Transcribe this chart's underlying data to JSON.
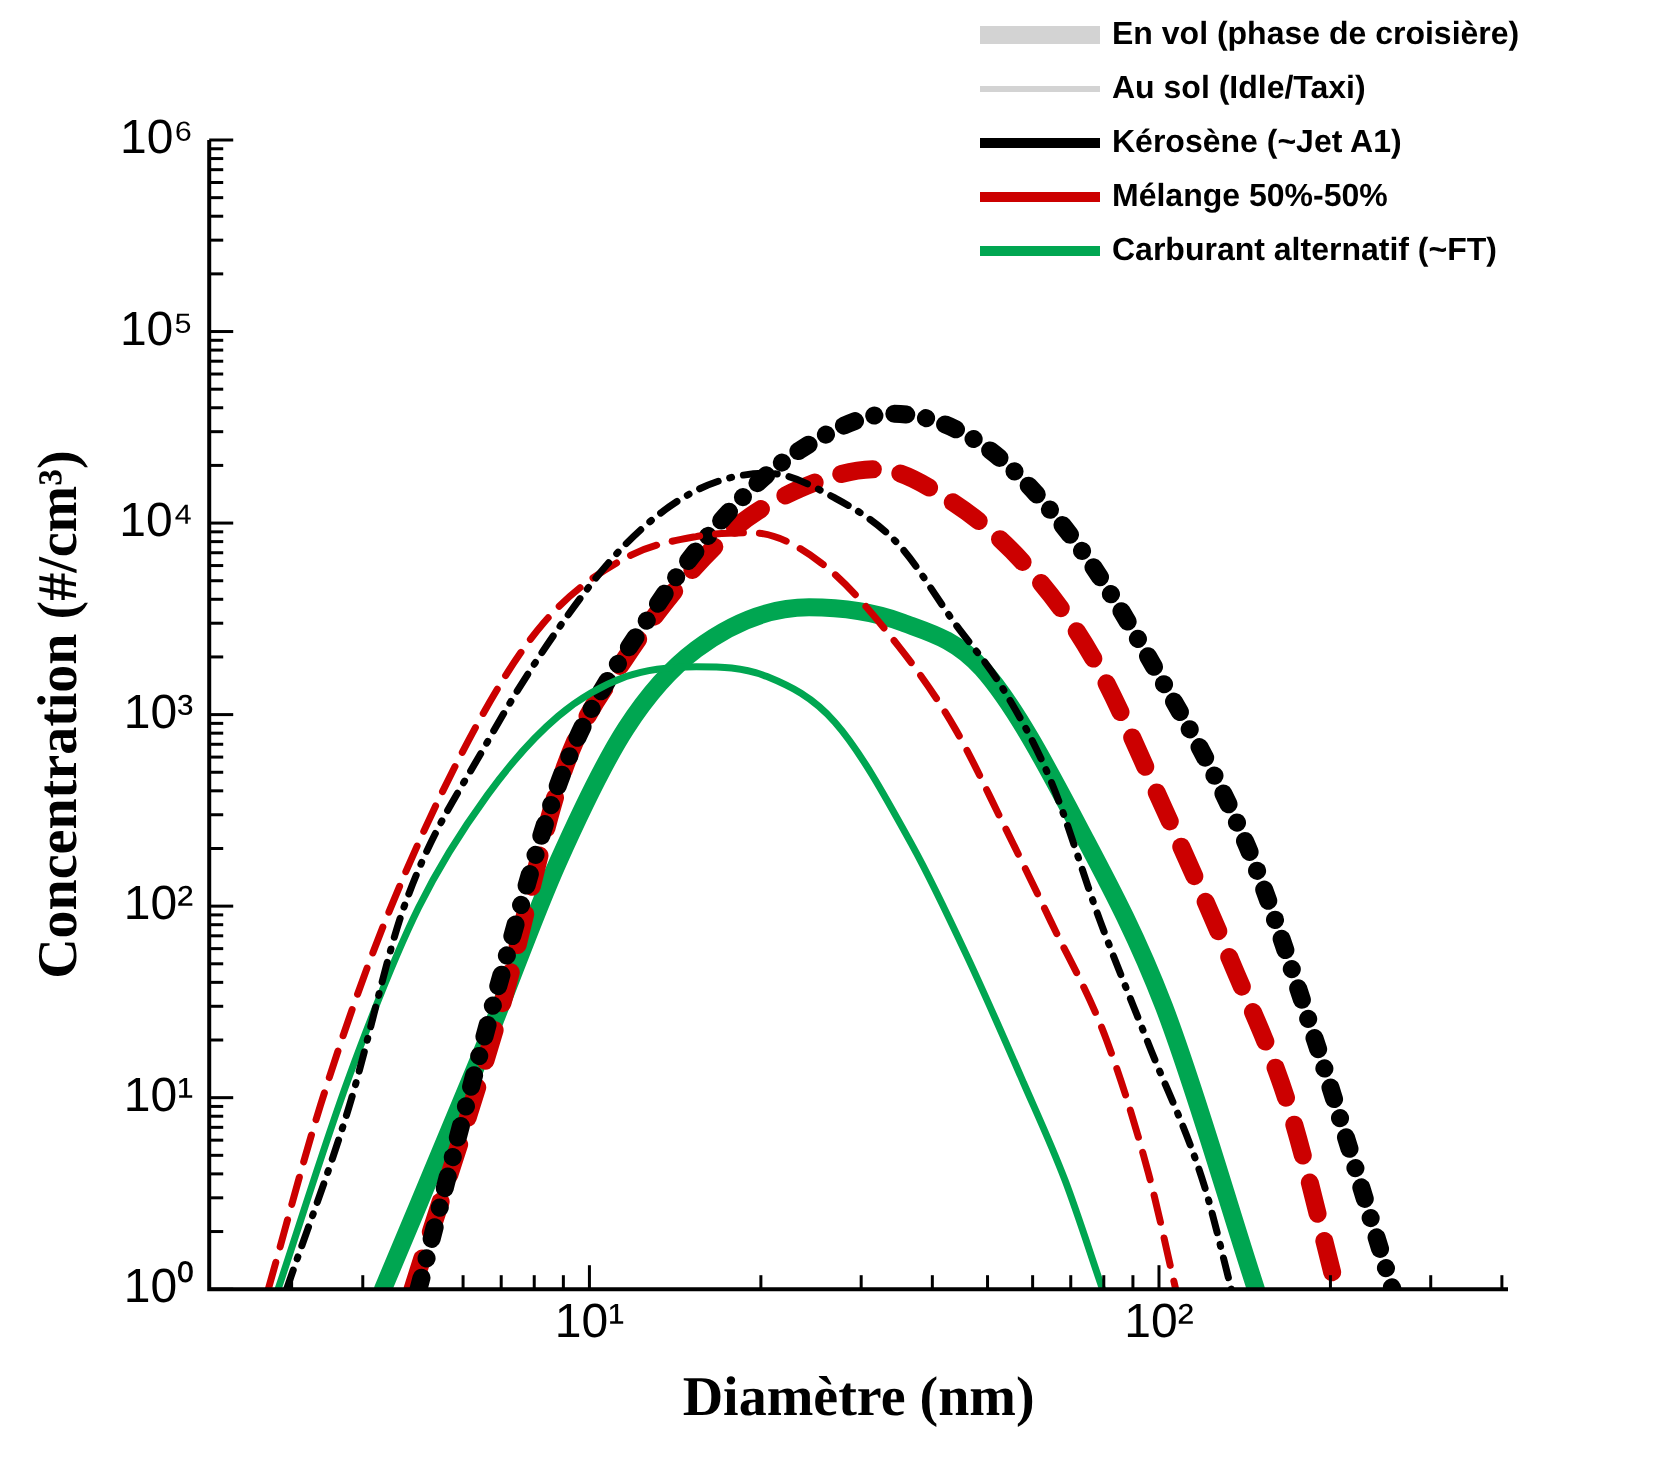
{
  "chart_data": {
    "type": "line",
    "xlabel": "Diamètre (nm)",
    "ylabel": "Concentration (#/cm³)",
    "log": "xy",
    "legend": "top right",
    "xlim": [
      2.15,
      410
    ],
    "ylim": [
      1,
      1000000
    ],
    "xticks": [
      {
        "value": 3,
        "label": null
      },
      {
        "value": 4,
        "label": null
      },
      {
        "value": 5,
        "label": null
      },
      {
        "value": 6,
        "label": null
      },
      {
        "value": 7,
        "label": null
      },
      {
        "value": 8,
        "label": null
      },
      {
        "value": 9,
        "label": null
      },
      {
        "value": 10,
        "label": "10¹"
      },
      {
        "value": 20,
        "label": null
      },
      {
        "value": 30,
        "label": null
      },
      {
        "value": 40,
        "label": null
      },
      {
        "value": 50,
        "label": null
      },
      {
        "value": 60,
        "label": null
      },
      {
        "value": 70,
        "label": null
      },
      {
        "value": 80,
        "label": null
      },
      {
        "value": 90,
        "label": null
      },
      {
        "value": 100,
        "label": "10²"
      },
      {
        "value": 200,
        "label": null
      },
      {
        "value": 300,
        "label": null
      },
      {
        "value": 400,
        "label": null
      }
    ],
    "yticks": [
      {
        "value": 1,
        "label": "10⁰"
      },
      {
        "value": 2,
        "label": null
      },
      {
        "value": 3,
        "label": null
      },
      {
        "value": 4,
        "label": null
      },
      {
        "value": 5,
        "label": null
      },
      {
        "value": 6,
        "label": null
      },
      {
        "value": 7,
        "label": null
      },
      {
        "value": 8,
        "label": null
      },
      {
        "value": 9,
        "label": null
      },
      {
        "value": 10,
        "label": "10¹"
      },
      {
        "value": 20,
        "label": null
      },
      {
        "value": 30,
        "label": null
      },
      {
        "value": 40,
        "label": null
      },
      {
        "value": 50,
        "label": null
      },
      {
        "value": 60,
        "label": null
      },
      {
        "value": 70,
        "label": null
      },
      {
        "value": 80,
        "label": null
      },
      {
        "value": 90,
        "label": null
      },
      {
        "value": 100,
        "label": "10²"
      },
      {
        "value": 200,
        "label": null
      },
      {
        "value": 300,
        "label": null
      },
      {
        "value": 400,
        "label": null
      },
      {
        "value": 500,
        "label": null
      },
      {
        "value": 600,
        "label": null
      },
      {
        "value": 700,
        "label": null
      },
      {
        "value": 800,
        "label": null
      },
      {
        "value": 900,
        "label": null
      },
      {
        "value": 1000,
        "label": "10³"
      },
      {
        "value": 2000,
        "label": null
      },
      {
        "value": 3000,
        "label": null
      },
      {
        "value": 4000,
        "label": null
      },
      {
        "value": 5000,
        "label": null
      },
      {
        "value": 6000,
        "label": null
      },
      {
        "value": 7000,
        "label": null
      },
      {
        "value": 8000,
        "label": null
      },
      {
        "value": 9000,
        "label": null
      },
      {
        "value": 10000,
        "label": "10⁴"
      },
      {
        "value": 20000,
        "label": null
      },
      {
        "value": 30000,
        "label": null
      },
      {
        "value": 40000,
        "label": null
      },
      {
        "value": 50000,
        "label": null
      },
      {
        "value": 60000,
        "label": null
      },
      {
        "value": 70000,
        "label": null
      },
      {
        "value": 80000,
        "label": null
      },
      {
        "value": 90000,
        "label": null
      },
      {
        "value": 100000,
        "label": "10⁵"
      },
      {
        "value": 200000,
        "label": null
      },
      {
        "value": 300000,
        "label": null
      },
      {
        "value": 400000,
        "label": null
      },
      {
        "value": 500000,
        "label": null
      },
      {
        "value": 600000,
        "label": null
      },
      {
        "value": 700000,
        "label": null
      },
      {
        "value": 800000,
        "label": null
      },
      {
        "value": 900000,
        "label": null
      },
      {
        "value": 1000000,
        "label": "10⁶"
      }
    ],
    "series": [
      {
        "name": "En vol (phase de croisière)",
        "color": "#d3d3d3",
        "line_style": "solid"
      },
      {
        "name": "Au sol (Idle/Taxi)",
        "color": "#d3d3d3",
        "line_style": "solid"
      },
      {
        "name": "Kérosène (~Jet A1)",
        "color": "#000000",
        "line_style": "dashdot",
        "x": [
          2.94,
          3.79,
          4.72,
          6.62,
          8.81,
          11.6,
          15.4,
          20.5,
          27.0,
          34.8,
          43.8,
          53.1,
          64.6,
          78.9,
          95.9,
          120,
          134
        ],
        "values": [
          1,
          9.1,
          98,
          720,
          2800,
          7800,
          14800,
          18200,
          13500,
          7800,
          3000,
          1380,
          450,
          83,
          19,
          3.5,
          1
        ]
      },
      {
        "name": "Mélange 50%-50%",
        "color": "#cc0000",
        "line_style": "dashed",
        "x": [
          2.73,
          3.37,
          4.34,
          6.3,
          8.3,
          11.6,
          15.4,
          19.3,
          25.5,
          34.8,
          43.8,
          53.1,
          64.6,
          80.9,
          95.9,
          107
        ],
        "values": [
          1,
          9.1,
          78,
          850,
          3000,
          6600,
          8500,
          8900,
          6200,
          2300,
          850,
          275,
          83,
          20,
          4,
          1
        ]
      },
      {
        "name": "Carburant alternatif (~FT)",
        "color": "#00a651",
        "line_style": "solid",
        "x": [
          2.84,
          3.79,
          5.01,
          6.62,
          8.81,
          11.6,
          15.4,
          20.5,
          27.0,
          37.0,
          46.0,
          57.8,
          68.4,
          79.6
        ],
        "values": [
          1,
          13,
          98,
          380,
          980,
          1580,
          1780,
          1580,
          910,
          204,
          55,
          12,
          3.7,
          1
        ]
      },
      {
        "color": "#000000",
        "line_style": "dashdot",
        "x": [
          5.01,
          7.01,
          9.04,
          13.0,
          17.7,
          23.4,
          34.0,
          48.9,
          70.2,
          98.4,
          143,
          188,
          257
        ],
        "values": [
          1,
          44,
          525,
          3550,
          11700,
          24000,
          37200,
          25700,
          8500,
          1740,
          204,
          20,
          1
        ]
      },
      {
        "color": "#cc0000",
        "line_style": "dashed",
        "x": [
          4.89,
          7.01,
          9.04,
          11.6,
          17.3,
          23.4,
          32.0,
          42.3,
          57.8,
          76.4,
          102,
          134,
          169,
          205
        ],
        "values": [
          1,
          30,
          525,
          2000,
          8500,
          15100,
          19100,
          13500,
          6200,
          2000,
          324,
          51,
          9,
          1
        ]
      },
      {
        "color": "#00a651",
        "line_style": "solid",
        "x": [
          4.34,
          6.61,
          8.81,
          11.6,
          15.4,
          24.3,
          35.5,
          48.9,
          74.5,
          102,
          148
        ],
        "values": [
          1,
          20,
          170,
          850,
          2190,
          3630,
          3020,
          1740,
          219,
          30,
          1
        ]
      }
    ]
  }
}
